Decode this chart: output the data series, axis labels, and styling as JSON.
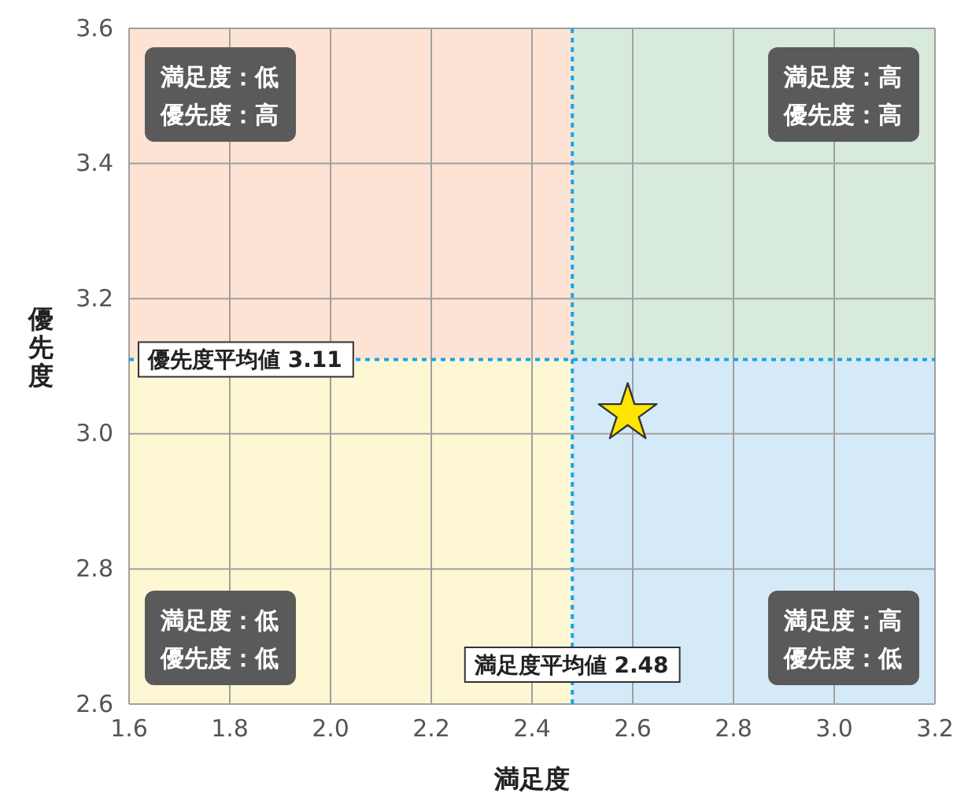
{
  "chart_data": {
    "type": "scatter",
    "xlabel": "満足度",
    "ylabel": "優先度",
    "x": [
      2.59
    ],
    "values": [
      3.03
    ],
    "color": "#ffe600",
    "marker": "star",
    "grid": true,
    "xlim": [
      1.6,
      3.2
    ],
    "xticks": [
      1.6,
      1.8,
      {
        "value": 2,
        "label": "2.0"
      },
      2.2,
      2.4,
      2.6,
      2.8,
      {
        "value": 3,
        "label": "3.0"
      },
      3.2
    ],
    "ylim": [
      2.6,
      3.6
    ],
    "yticks": [
      2.6,
      2.8,
      {
        "value": 3,
        "label": "3.0"
      },
      3.2,
      3.4,
      3.6
    ],
    "ref_lines": [
      {
        "axis": "y",
        "value": 3.11,
        "label": "優先度平均値 3.11",
        "color": "#1aa3e8",
        "line_style": "dotted"
      },
      {
        "axis": "x",
        "value": 2.48,
        "label": "満足度平均値 2.48",
        "color": "#1aa3e8",
        "line_style": "dotted"
      }
    ],
    "annotations": [
      "満足度：低",
      "優先度：高",
      "満足度：高",
      "優先度：高",
      "満足度：低",
      "優先度：低",
      "満足度：高",
      "優先度：低"
    ]
  }
}
